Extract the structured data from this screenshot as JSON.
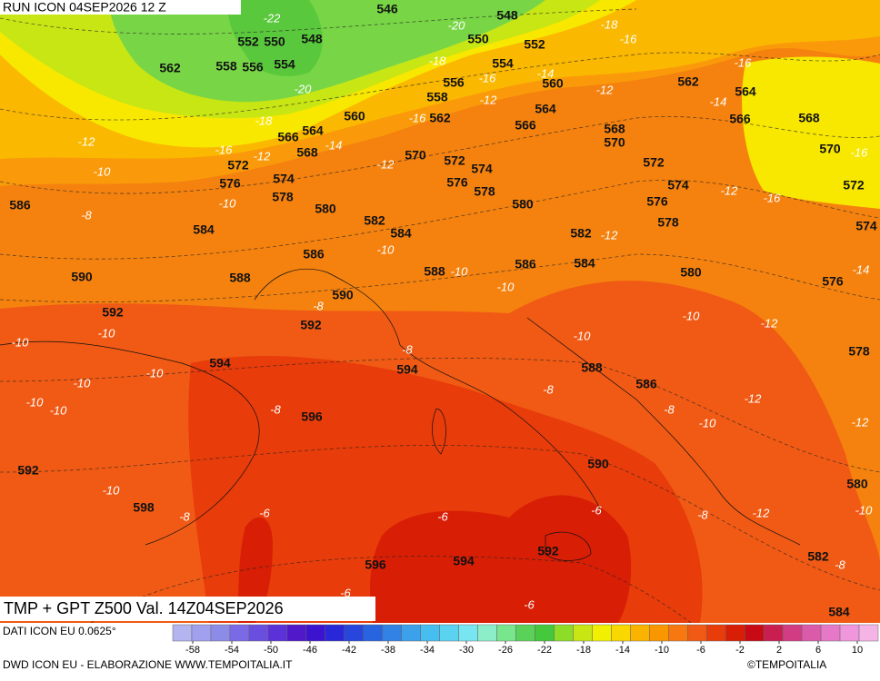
{
  "header": {
    "run": "RUN ICON 04SEP2026 12 Z",
    "title": "TMP + GPT Z500 Val. 14Z04SEP2026",
    "source": "DATI ICON EU 0.0625°",
    "credit": "DWD ICON EU - ELABORAZIONE WWW.TEMPOITALIA.IT",
    "logo": "©TEMPOITALIA"
  },
  "colorbar": {
    "ticks": [
      -58,
      -54,
      -50,
      -46,
      -42,
      -38,
      -34,
      -30,
      -26,
      -22,
      -18,
      -14,
      -10,
      -6,
      -2,
      2,
      6,
      10
    ]
  },
  "contour_labels": {
    "geopotential": [
      546,
      548,
      552,
      550,
      548,
      550,
      552,
      562,
      558,
      556,
      554,
      554,
      556,
      560,
      562,
      564,
      558,
      562,
      560,
      564,
      566,
      566,
      568,
      564,
      566,
      568,
      568,
      570,
      570,
      572,
      574,
      570,
      572,
      574,
      576,
      576,
      578,
      578,
      572,
      574,
      572,
      586,
      580,
      582,
      580,
      576,
      578,
      584,
      584,
      582,
      574,
      586,
      588,
      586,
      584,
      580,
      576,
      590,
      588,
      590,
      592,
      592,
      578,
      594,
      594,
      588,
      586,
      596,
      590,
      592,
      580,
      598,
      596,
      594,
      592,
      582,
      584
    ],
    "temperature": [
      -22,
      -20,
      -18,
      -16,
      -18,
      -16,
      -14,
      -16,
      -20,
      -12,
      -12,
      -14,
      -16,
      -18,
      -12,
      -14,
      -16,
      -12,
      -16,
      -12,
      -10,
      -12,
      -16,
      -10,
      -8,
      -12,
      -10,
      -10,
      -10,
      -14,
      -8,
      -10,
      -12,
      -10,
      -10,
      -10,
      -10,
      -8,
      -10,
      -10,
      -10,
      -8,
      -12,
      -8,
      -8,
      -10,
      -12,
      -10,
      -8,
      -6,
      -6,
      -6,
      -8,
      -12,
      -10,
      -8,
      -6,
      -6
    ]
  }
}
